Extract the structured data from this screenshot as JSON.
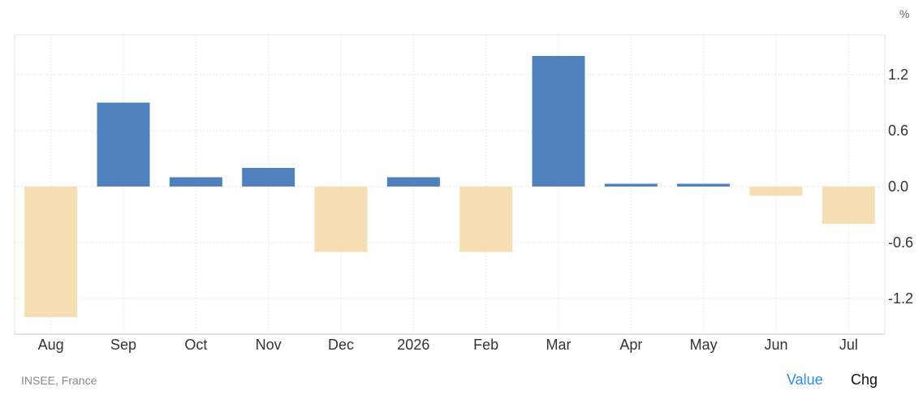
{
  "chart_data": {
    "type": "bar",
    "categories": [
      "Aug",
      "Sep",
      "Oct",
      "Nov",
      "Dec",
      "2026",
      "Feb",
      "Mar",
      "Apr",
      "May",
      "Jun",
      "Jul"
    ],
    "values": [
      -1.4,
      0.9,
      0.1,
      0.2,
      -0.7,
      0.1,
      -0.7,
      1.4,
      0.03,
      0.03,
      -0.1,
      -0.4
    ],
    "yticks": [
      "1.2",
      "0.6",
      "0.0",
      "-0.6",
      "-1.2"
    ],
    "ytick_values": [
      1.2,
      0.6,
      0.0,
      -0.6,
      -1.2
    ],
    "ylabel": "%",
    "ylim": [
      -1.6,
      1.63
    ],
    "colors": {
      "positive": "#4f81bd",
      "negative": "#f5deb3",
      "grid": "#e8e8e8"
    },
    "grid": true
  },
  "footer": {
    "source": "INSEE, France",
    "value_label": "Value",
    "chg_label": "Chg"
  }
}
